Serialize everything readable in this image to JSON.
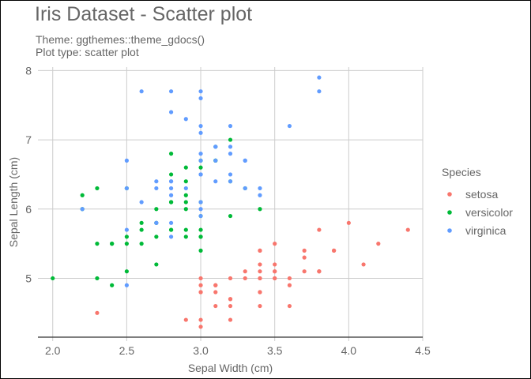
{
  "chart_data": {
    "type": "scatter",
    "title": "Iris Dataset - Scatter plot",
    "subtitle_lines": [
      "Theme: ggthemes::theme_gdocs()",
      "Plot type: scatter plot"
    ],
    "xlabel": "Sepal Width (cm)",
    "ylabel": "Sepal Length (cm)",
    "xlim": [
      1.9,
      4.5
    ],
    "ylim": [
      4.15,
      8.05
    ],
    "xticks": [
      "2.0",
      "2.5",
      "3.0",
      "3.5",
      "4.0",
      "4.5"
    ],
    "yticks": [
      "5",
      "6",
      "7",
      "8"
    ],
    "grid": true,
    "legend": {
      "title": "Species",
      "position": "right"
    },
    "series": [
      {
        "name": "setosa",
        "color": "#F8766D",
        "points": [
          [
            3.5,
            5.1
          ],
          [
            3.0,
            4.9
          ],
          [
            3.2,
            4.7
          ],
          [
            3.1,
            4.6
          ],
          [
            3.6,
            5.0
          ],
          [
            3.9,
            5.4
          ],
          [
            3.4,
            4.6
          ],
          [
            3.4,
            5.0
          ],
          [
            2.9,
            4.4
          ],
          [
            3.1,
            4.9
          ],
          [
            3.7,
            5.4
          ],
          [
            3.4,
            4.8
          ],
          [
            3.0,
            4.8
          ],
          [
            3.0,
            4.3
          ],
          [
            4.0,
            5.8
          ],
          [
            4.4,
            5.7
          ],
          [
            3.9,
            5.4
          ],
          [
            3.5,
            5.1
          ],
          [
            3.8,
            5.7
          ],
          [
            3.8,
            5.1
          ],
          [
            3.4,
            5.4
          ],
          [
            3.7,
            5.1
          ],
          [
            3.6,
            4.6
          ],
          [
            3.3,
            5.1
          ],
          [
            3.4,
            4.8
          ],
          [
            3.0,
            5.0
          ],
          [
            3.4,
            5.0
          ],
          [
            3.5,
            5.2
          ],
          [
            3.4,
            5.2
          ],
          [
            3.2,
            4.7
          ],
          [
            3.1,
            4.8
          ],
          [
            3.4,
            5.4
          ],
          [
            4.1,
            5.2
          ],
          [
            4.2,
            5.5
          ],
          [
            3.1,
            4.9
          ],
          [
            3.2,
            5.0
          ],
          [
            3.5,
            5.5
          ],
          [
            3.6,
            4.9
          ],
          [
            3.0,
            4.4
          ],
          [
            3.4,
            5.1
          ],
          [
            3.5,
            5.0
          ],
          [
            2.3,
            4.5
          ],
          [
            3.2,
            4.4
          ],
          [
            3.5,
            5.0
          ],
          [
            3.8,
            5.1
          ],
          [
            3.0,
            4.8
          ],
          [
            3.8,
            5.1
          ],
          [
            3.2,
            4.6
          ],
          [
            3.7,
            5.3
          ],
          [
            3.3,
            5.0
          ]
        ]
      },
      {
        "name": "versicolor",
        "color": "#00BA38",
        "points": [
          [
            3.2,
            7.0
          ],
          [
            3.2,
            6.4
          ],
          [
            3.1,
            6.9
          ],
          [
            2.3,
            5.5
          ],
          [
            2.8,
            6.5
          ],
          [
            2.8,
            5.7
          ],
          [
            3.3,
            6.3
          ],
          [
            2.4,
            4.9
          ],
          [
            2.9,
            6.6
          ],
          [
            2.7,
            5.2
          ],
          [
            2.0,
            5.0
          ],
          [
            3.0,
            5.9
          ],
          [
            2.2,
            6.0
          ],
          [
            2.9,
            6.1
          ],
          [
            2.9,
            5.6
          ],
          [
            3.1,
            6.7
          ],
          [
            3.0,
            5.6
          ],
          [
            2.7,
            5.8
          ],
          [
            2.2,
            6.2
          ],
          [
            2.5,
            5.6
          ],
          [
            3.2,
            5.9
          ],
          [
            2.8,
            6.1
          ],
          [
            2.5,
            6.3
          ],
          [
            2.8,
            6.1
          ],
          [
            2.9,
            6.4
          ],
          [
            3.0,
            6.6
          ],
          [
            2.8,
            6.8
          ],
          [
            3.0,
            6.7
          ],
          [
            2.9,
            6.0
          ],
          [
            2.6,
            5.7
          ],
          [
            2.4,
            5.5
          ],
          [
            2.4,
            5.5
          ],
          [
            2.7,
            5.8
          ],
          [
            2.7,
            6.0
          ],
          [
            3.0,
            5.4
          ],
          [
            3.4,
            6.0
          ],
          [
            3.1,
            6.7
          ],
          [
            2.3,
            6.3
          ],
          [
            3.0,
            5.6
          ],
          [
            2.5,
            5.5
          ],
          [
            2.6,
            5.5
          ],
          [
            3.0,
            6.1
          ],
          [
            2.6,
            5.8
          ],
          [
            2.3,
            5.0
          ],
          [
            2.7,
            5.6
          ],
          [
            3.0,
            5.7
          ],
          [
            2.9,
            5.7
          ],
          [
            2.9,
            6.2
          ],
          [
            2.5,
            5.1
          ],
          [
            2.8,
            5.7
          ]
        ]
      },
      {
        "name": "virginica",
        "color": "#619CFF",
        "points": [
          [
            3.3,
            6.3
          ],
          [
            2.7,
            5.8
          ],
          [
            3.0,
            7.1
          ],
          [
            2.9,
            6.3
          ],
          [
            3.0,
            6.5
          ],
          [
            3.0,
            7.6
          ],
          [
            2.5,
            4.9
          ],
          [
            2.9,
            7.3
          ],
          [
            2.5,
            6.7
          ],
          [
            3.6,
            7.2
          ],
          [
            3.2,
            6.5
          ],
          [
            2.7,
            6.4
          ],
          [
            3.0,
            6.8
          ],
          [
            2.5,
            5.7
          ],
          [
            2.8,
            5.8
          ],
          [
            3.2,
            6.4
          ],
          [
            3.0,
            6.5
          ],
          [
            3.8,
            7.7
          ],
          [
            2.6,
            7.7
          ],
          [
            2.2,
            6.0
          ],
          [
            3.2,
            6.9
          ],
          [
            2.8,
            5.6
          ],
          [
            2.8,
            7.7
          ],
          [
            2.7,
            6.3
          ],
          [
            3.3,
            6.7
          ],
          [
            3.2,
            7.2
          ],
          [
            2.8,
            6.2
          ],
          [
            3.0,
            6.1
          ],
          [
            2.8,
            6.4
          ],
          [
            3.0,
            7.2
          ],
          [
            2.8,
            7.4
          ],
          [
            3.8,
            7.9
          ],
          [
            2.8,
            6.4
          ],
          [
            2.8,
            6.3
          ],
          [
            2.6,
            6.1
          ],
          [
            3.0,
            7.7
          ],
          [
            3.4,
            6.3
          ],
          [
            3.1,
            6.4
          ],
          [
            3.0,
            6.0
          ],
          [
            3.1,
            6.9
          ],
          [
            3.1,
            6.7
          ],
          [
            3.1,
            6.9
          ],
          [
            2.7,
            5.8
          ],
          [
            3.2,
            6.8
          ],
          [
            3.3,
            6.7
          ],
          [
            3.0,
            6.7
          ],
          [
            2.5,
            6.3
          ],
          [
            3.0,
            6.5
          ],
          [
            3.4,
            6.2
          ],
          [
            3.0,
            5.9
          ]
        ]
      }
    ]
  }
}
